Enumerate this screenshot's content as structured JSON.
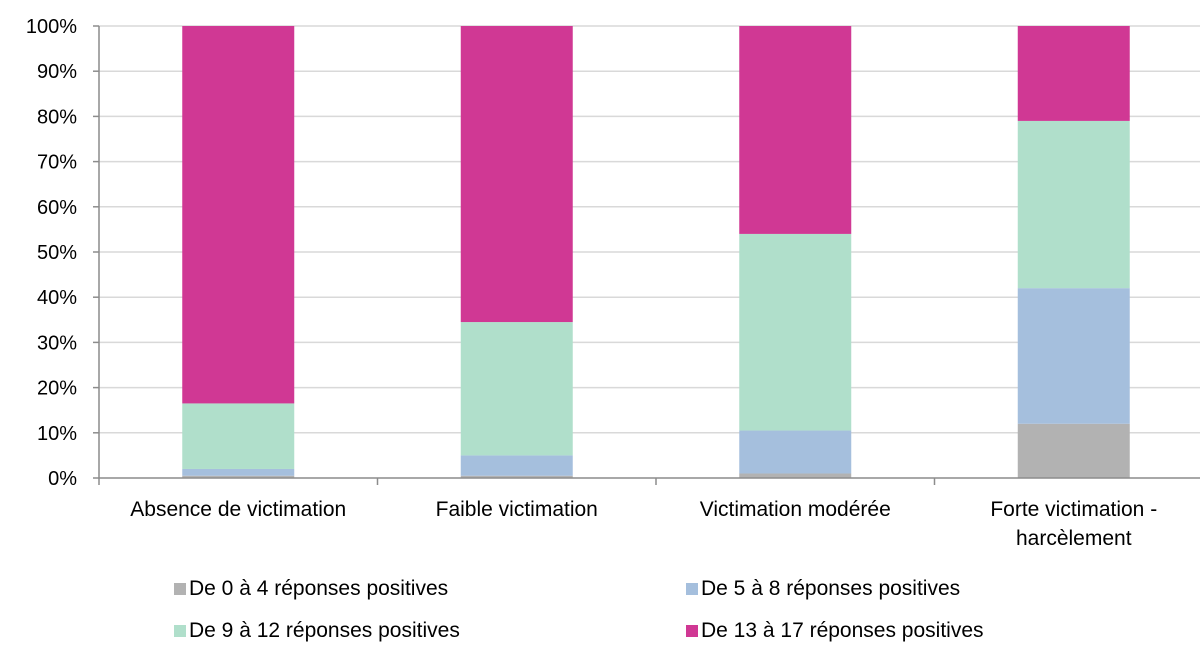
{
  "chart_data": {
    "type": "bar",
    "stacked": true,
    "normalized": true,
    "categories": [
      [
        "Absence de victimation"
      ],
      [
        "Faible victimation"
      ],
      [
        "Victimation modérée"
      ],
      [
        "Forte victimation -",
        "harcèlement"
      ]
    ],
    "series": [
      {
        "name": "De 0 à 4 réponses positives",
        "color": "#b2b2b2",
        "values": [
          0.5,
          0.5,
          1,
          12
        ]
      },
      {
        "name": "De 5 à 8 réponses positives",
        "color": "#a5bfdd",
        "values": [
          1.5,
          4.5,
          9.5,
          30
        ]
      },
      {
        "name": "De 9 à 12 réponses positives",
        "color": "#b0dfcb",
        "values": [
          14.5,
          29.5,
          43.5,
          37
        ]
      },
      {
        "name": "De 13 à 17 réponses positives",
        "color": "#d03894",
        "values": [
          83.5,
          65.5,
          46,
          21
        ]
      }
    ],
    "y_ticks": [
      "0%",
      "10%",
      "20%",
      "30%",
      "40%",
      "50%",
      "60%",
      "70%",
      "80%",
      "90%",
      "100%"
    ],
    "ylim": [
      0,
      100
    ],
    "grid": true,
    "legend_position": "bottom"
  }
}
